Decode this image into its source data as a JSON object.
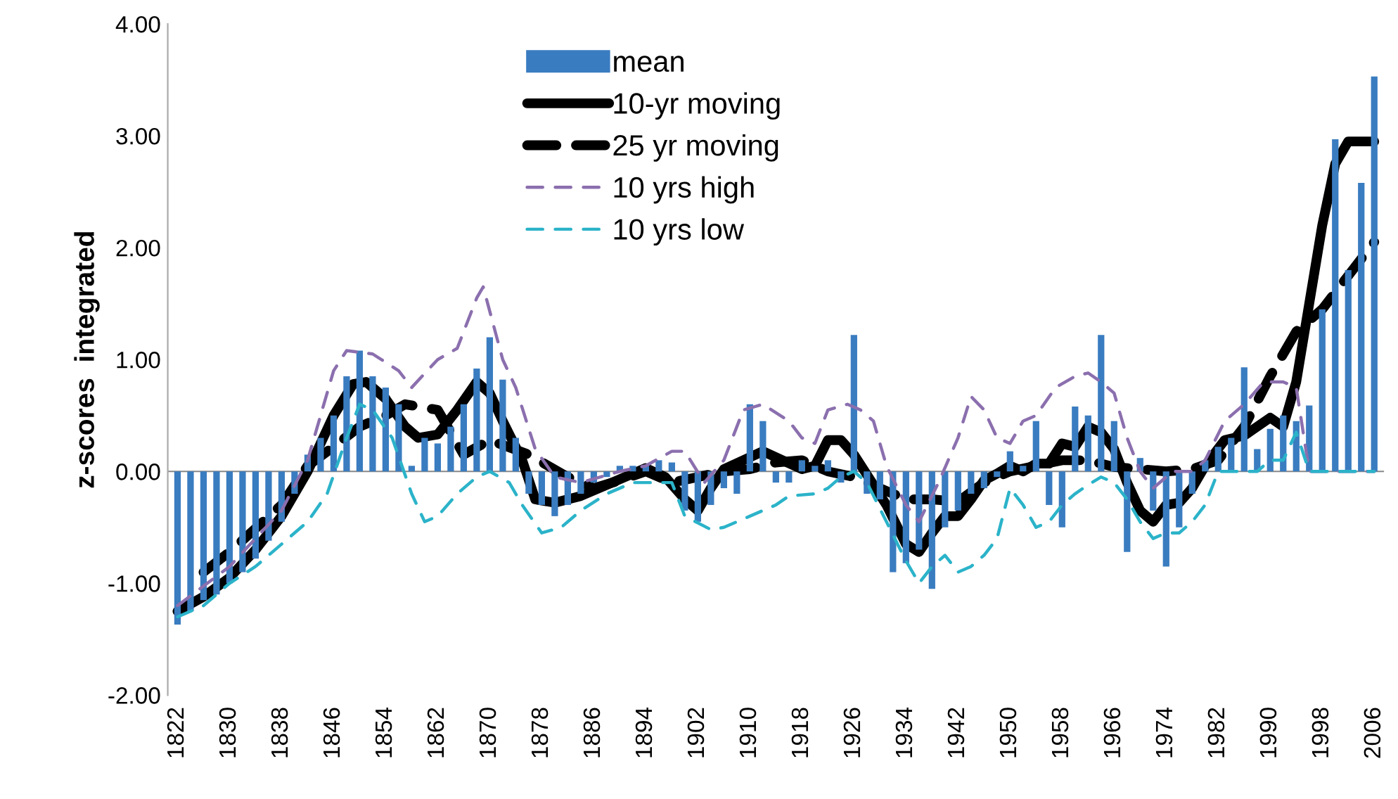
{
  "chart_data": {
    "type": "bar",
    "ylabel": "z-scores  integrated",
    "xlim": [
      1820.5,
      2007.5
    ],
    "xticks": [
      1822,
      1830,
      1838,
      1846,
      1854,
      1862,
      1870,
      1878,
      1886,
      1894,
      1902,
      1910,
      1918,
      1926,
      1934,
      1942,
      1950,
      1958,
      1966,
      1974,
      1982,
      1990,
      1998,
      2006
    ],
    "ylim": [
      -2,
      4
    ],
    "yticks": [
      {
        "value": -2,
        "label": "-2.00"
      },
      {
        "value": -1,
        "label": "-1.00"
      },
      {
        "value": 0,
        "label": "0.00"
      },
      {
        "value": 1,
        "label": "1.00"
      },
      {
        "value": 2,
        "label": "2.00"
      },
      {
        "value": 3,
        "label": "3.00"
      },
      {
        "value": 4,
        "label": "4.00"
      }
    ],
    "grid": false,
    "legend": "top",
    "marker": "none",
    "ref_lines": [
      {
        "axis": "y",
        "value": 0,
        "color": "#888888"
      }
    ],
    "series": [
      {
        "name": "mean",
        "type": "bar",
        "color": "#3a7cc0",
        "x": [
          1822,
          1824,
          1826,
          1828,
          1830,
          1832,
          1834,
          1836,
          1838,
          1840,
          1842,
          1844,
          1846,
          1848,
          1850,
          1852,
          1854,
          1856,
          1858,
          1860,
          1862,
          1864,
          1866,
          1868,
          1870,
          1872,
          1874,
          1876,
          1878,
          1880,
          1882,
          1884,
          1886,
          1888,
          1890,
          1892,
          1894,
          1896,
          1898,
          1900,
          1902,
          1904,
          1906,
          1908,
          1910,
          1912,
          1914,
          1916,
          1918,
          1920,
          1922,
          1924,
          1926,
          1928,
          1930,
          1932,
          1934,
          1936,
          1938,
          1940,
          1942,
          1944,
          1946,
          1948,
          1950,
          1952,
          1954,
          1956,
          1958,
          1960,
          1962,
          1964,
          1966,
          1968,
          1970,
          1972,
          1974,
          1976,
          1978,
          1980,
          1982,
          1984,
          1986,
          1988,
          1990,
          1992,
          1994,
          1996,
          1998,
          2000,
          2002,
          2004,
          2006
        ],
        "values": [
          -1.37,
          -1.25,
          -1.15,
          -1.1,
          -1.0,
          -0.9,
          -0.78,
          -0.62,
          -0.45,
          -0.2,
          0.15,
          0.3,
          0.5,
          0.85,
          1.08,
          0.85,
          0.75,
          0.6,
          0.05,
          0.3,
          0.25,
          0.4,
          0.6,
          0.92,
          1.2,
          0.82,
          0.3,
          -0.2,
          -0.3,
          -0.4,
          -0.3,
          -0.2,
          -0.1,
          -0.05,
          0.05,
          0.05,
          0.05,
          0.1,
          0.08,
          -0.35,
          -0.45,
          -0.3,
          -0.15,
          -0.2,
          0.6,
          0.45,
          -0.1,
          -0.1,
          0.1,
          0.05,
          0.1,
          -0.1,
          1.22,
          -0.2,
          -0.25,
          -0.9,
          -0.82,
          -0.7,
          -1.05,
          -0.5,
          -0.35,
          -0.2,
          -0.15,
          -0.05,
          0.18,
          0.05,
          0.45,
          -0.3,
          -0.5,
          0.58,
          0.5,
          1.22,
          0.45,
          -0.72,
          0.12,
          -0.35,
          -0.85,
          -0.5,
          -0.2,
          0.1,
          0.22,
          0.3,
          0.93,
          0.2,
          0.38,
          0.5,
          0.45,
          0.59,
          1.45,
          2.97,
          1.8,
          2.58,
          3.53
        ]
      },
      {
        "name": "10-yr moving",
        "type": "line",
        "color": "#000000",
        "line_style": "solid",
        "x": [
          1822,
          1826,
          1830,
          1834,
          1838,
          1842,
          1846,
          1849,
          1851,
          1854,
          1857,
          1859,
          1862,
          1865,
          1868,
          1870,
          1872,
          1875,
          1877,
          1880,
          1884,
          1888,
          1892,
          1894,
          1897,
          1900,
          1902,
          1904,
          1906,
          1909,
          1912,
          1915,
          1918,
          1920,
          1922,
          1924,
          1926,
          1929,
          1931,
          1934,
          1936,
          1938,
          1940,
          1942,
          1944,
          1946,
          1948,
          1950,
          1952,
          1954,
          1956,
          1958,
          1960,
          1962,
          1964,
          1966,
          1968,
          1970,
          1972,
          1974,
          1976,
          1978,
          1980,
          1983,
          1986,
          1988,
          1990,
          1992,
          1994,
          1996,
          1998,
          2000,
          2002,
          2006
        ],
        "values": [
          -1.25,
          -1.12,
          -0.95,
          -0.7,
          -0.4,
          0.0,
          0.5,
          0.78,
          0.8,
          0.65,
          0.4,
          0.3,
          0.33,
          0.55,
          0.8,
          0.7,
          0.45,
          0.1,
          -0.25,
          -0.28,
          -0.22,
          -0.12,
          -0.02,
          0.03,
          -0.05,
          -0.25,
          -0.35,
          -0.15,
          0.02,
          0.1,
          0.18,
          0.1,
          0.02,
          0.05,
          0.28,
          0.28,
          0.15,
          -0.12,
          -0.3,
          -0.65,
          -0.72,
          -0.55,
          -0.4,
          -0.4,
          -0.25,
          -0.08,
          -0.02,
          0.05,
          0.0,
          0.07,
          0.07,
          0.25,
          0.22,
          0.4,
          0.35,
          0.2,
          -0.1,
          -0.35,
          -0.45,
          -0.3,
          -0.28,
          -0.15,
          0.05,
          0.28,
          0.32,
          0.4,
          0.48,
          0.4,
          0.8,
          1.5,
          2.2,
          2.75,
          2.95,
          2.95
        ]
      },
      {
        "name": "25 yr moving",
        "type": "line",
        "color": "#000000",
        "line_style": "dashed",
        "x": [
          1826,
          1830,
          1838,
          1842,
          1846,
          1850,
          1854,
          1857,
          1862,
          1866,
          1870,
          1876,
          1882,
          1886,
          1890,
          1894,
          1898,
          1902,
          1906,
          1910,
          1914,
          1918,
          1922,
          1926,
          1930,
          1934,
          1938,
          1942,
          1946,
          1950,
          1954,
          1958,
          1962,
          1966,
          1970,
          1974,
          1978,
          1982,
          1986,
          1990,
          1994,
          1998,
          2002,
          2006
        ],
        "values": [
          -0.9,
          -0.72,
          -0.3,
          0.05,
          0.22,
          0.4,
          0.5,
          0.6,
          0.55,
          0.15,
          0.28,
          0.15,
          -0.05,
          -0.15,
          -0.08,
          0.0,
          -0.1,
          -0.05,
          0.0,
          0.02,
          0.08,
          0.1,
          0.0,
          -0.05,
          -0.15,
          -0.25,
          -0.25,
          -0.27,
          -0.1,
          0.0,
          0.05,
          0.1,
          0.1,
          0.04,
          0.02,
          0.0,
          0.02,
          0.1,
          0.4,
          0.85,
          1.25,
          1.45,
          1.75,
          2.05
        ]
      },
      {
        "name": "10 yrs high",
        "type": "line",
        "color": "#8b6fae",
        "line_style": "dashed",
        "x": [
          1822,
          1830,
          1838,
          1842,
          1846,
          1848,
          1852,
          1856,
          1858,
          1862,
          1865,
          1868,
          1869,
          1872,
          1874,
          1877,
          1880,
          1884,
          1890,
          1894,
          1898,
          1900,
          1903,
          1906,
          1909,
          1912,
          1916,
          1918,
          1920,
          1922,
          1925,
          1927,
          1929,
          1931,
          1934,
          1936,
          1939,
          1942,
          1944,
          1946,
          1948,
          1950,
          1952,
          1954,
          1957,
          1960,
          1962,
          1964,
          1966,
          1968,
          1970,
          1972,
          1975,
          1978,
          1980,
          1983,
          1986,
          1989,
          1992,
          1994,
          1996,
          2006
        ],
        "values": [
          -1.2,
          -0.85,
          -0.35,
          0.1,
          0.9,
          1.08,
          1.05,
          0.9,
          0.75,
          1.0,
          1.1,
          1.55,
          1.65,
          1.0,
          0.75,
          0.2,
          -0.05,
          -0.1,
          0.0,
          0.05,
          0.18,
          0.18,
          -0.1,
          0.1,
          0.55,
          0.6,
          0.45,
          0.3,
          0.25,
          0.55,
          0.6,
          0.55,
          0.45,
          0.05,
          -0.3,
          -0.45,
          -0.1,
          0.3,
          0.67,
          0.55,
          0.3,
          0.25,
          0.45,
          0.5,
          0.75,
          0.85,
          0.88,
          0.8,
          0.7,
          0.3,
          0.0,
          -0.15,
          0.0,
          0.0,
          0.1,
          0.45,
          0.6,
          0.8,
          0.8,
          0.75,
          0.0,
          0.0
        ]
      },
      {
        "name": "10 yrs low",
        "type": "line",
        "color": "#2bb3c9",
        "line_style": "dashed",
        "x": [
          1822,
          1826,
          1830,
          1834,
          1838,
          1842,
          1845,
          1848,
          1850,
          1852,
          1855,
          1858,
          1860,
          1862,
          1865,
          1868,
          1870,
          1873,
          1875,
          1878,
          1881,
          1884,
          1888,
          1892,
          1896,
          1898,
          1900,
          1904,
          1906,
          1910,
          1914,
          1916,
          1920,
          1922,
          1924,
          1926,
          1928,
          1931,
          1934,
          1936,
          1938,
          1940,
          1942,
          1944,
          1946,
          1948,
          1950,
          1952,
          1954,
          1956,
          1958,
          1960,
          1962,
          1964,
          1966,
          1968,
          1970,
          1972,
          1974,
          1976,
          1978,
          1980,
          1982,
          1986,
          1988,
          1990,
          1992,
          1994,
          1996,
          2006
        ],
        "values": [
          -1.3,
          -1.2,
          -1.0,
          -0.85,
          -0.65,
          -0.45,
          -0.2,
          0.3,
          0.6,
          0.55,
          0.3,
          -0.2,
          -0.45,
          -0.4,
          -0.2,
          -0.05,
          0.0,
          -0.1,
          -0.3,
          -0.55,
          -0.5,
          -0.35,
          -0.2,
          -0.1,
          -0.1,
          -0.1,
          -0.4,
          -0.52,
          -0.5,
          -0.4,
          -0.3,
          -0.22,
          -0.2,
          -0.15,
          -0.05,
          0.0,
          -0.1,
          -0.45,
          -0.8,
          -1.0,
          -0.85,
          -0.75,
          -0.9,
          -0.85,
          -0.75,
          -0.6,
          -0.15,
          -0.3,
          -0.5,
          -0.45,
          -0.3,
          -0.2,
          -0.12,
          -0.05,
          -0.1,
          -0.25,
          -0.45,
          -0.6,
          -0.55,
          -0.55,
          -0.45,
          -0.3,
          0.0,
          0.0,
          0.0,
          0.1,
          0.1,
          0.35,
          0.0,
          0.0
        ]
      }
    ]
  }
}
